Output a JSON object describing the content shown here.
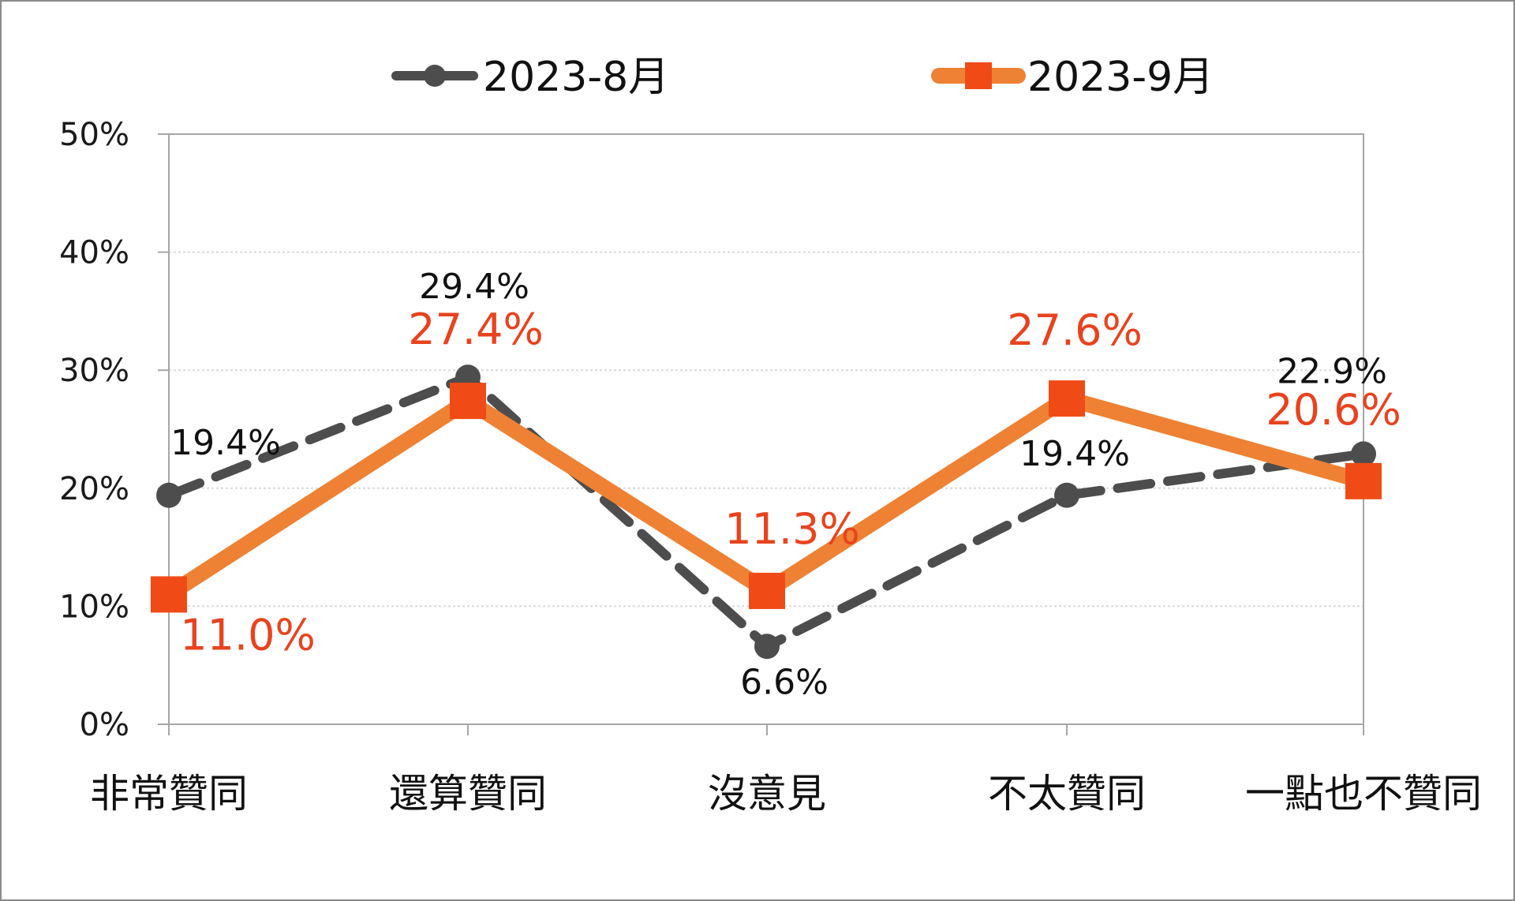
{
  "chart_data": {
    "type": "line",
    "categories": [
      "非常贊同",
      "還算贊同",
      "沒意見",
      "不太贊同",
      "一點也不贊同"
    ],
    "series": [
      {
        "name": "2023-8月",
        "values": [
          19.4,
          29.4,
          6.6,
          19.4,
          22.9
        ],
        "labels": [
          "19.4%",
          "29.4%",
          "6.6%",
          "19.4%",
          "22.9%"
        ],
        "color": "#4d4d4d",
        "style": "dashed",
        "marker": "circle"
      },
      {
        "name": "2023-9月",
        "values": [
          11.0,
          27.4,
          11.3,
          27.6,
          20.6
        ],
        "labels": [
          "11.0%",
          "27.4%",
          "11.3%",
          "27.6%",
          "20.6%"
        ],
        "color": "#ee8133",
        "marker_color": "#f04b16",
        "style": "solid",
        "marker": "square"
      }
    ],
    "y_ticks": [
      "0%",
      "10%",
      "20%",
      "30%",
      "40%",
      "50%"
    ],
    "ylim": [
      0,
      50
    ],
    "grid": true,
    "legend_position": "top"
  }
}
